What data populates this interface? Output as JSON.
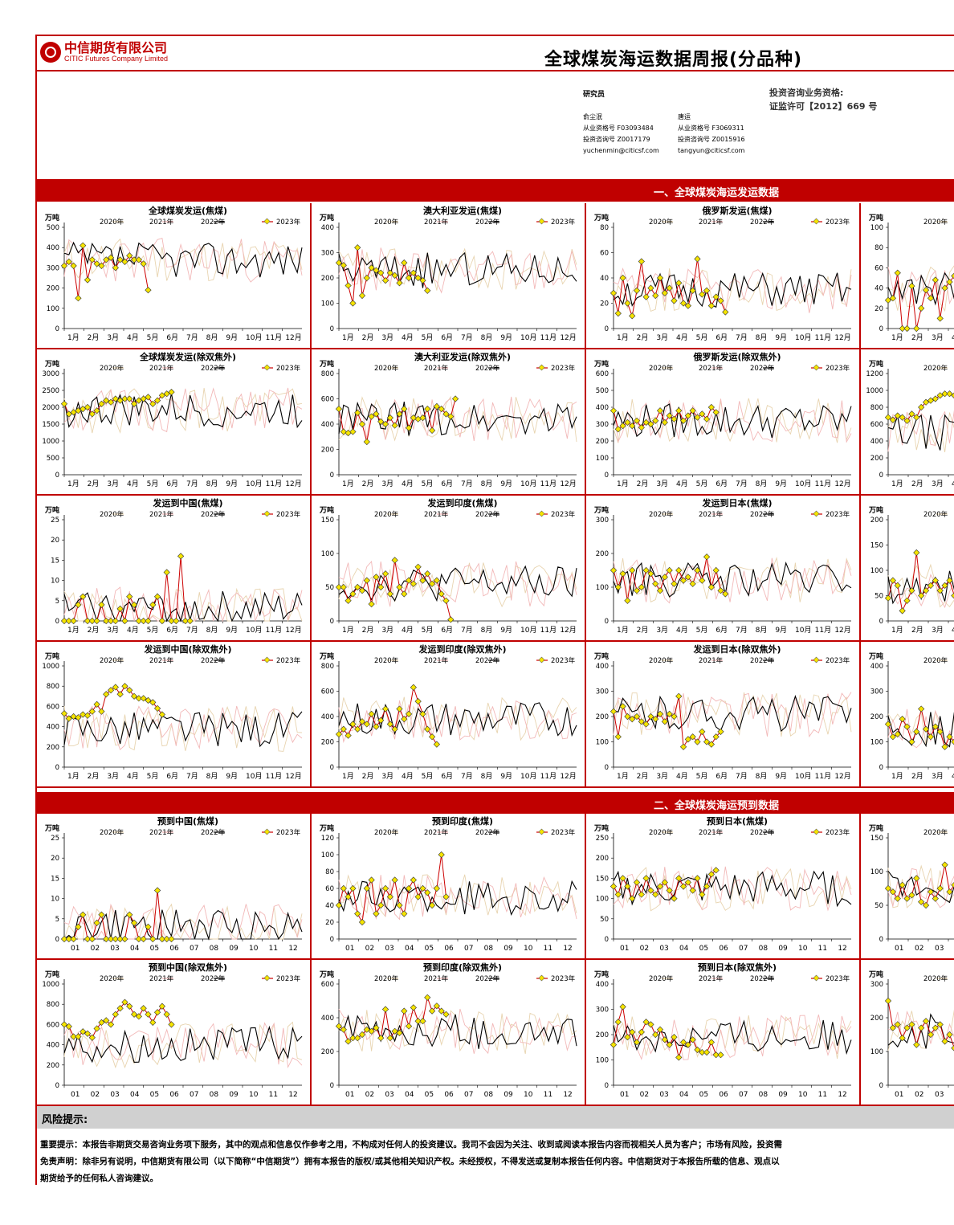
{
  "header": {
    "company_cn": "中信期货有限公司",
    "company_en": "CITIC Futures Company Limited",
    "title": "全球煤炭海运数据周报(分品种)"
  },
  "researchers": {
    "label": "研究员",
    "people": [
      {
        "name": "俞尘泯",
        "qual": "从业资格号 F03093484",
        "consult": "投资咨询号 Z0017179",
        "email": "yuchenmin@citicsf.com"
      },
      {
        "name": "唐运",
        "qual": "从业资格号 F3069311",
        "consult": "投资咨询号 Z0015916",
        "email": "tangyun@citicsf.com"
      }
    ],
    "license_line1": "投资咨询业务资格:",
    "license_line2": "证监许可【2012】669 号"
  },
  "sections": {
    "shipments": "一、全球煤炭海运发运数据",
    "arrivals": "二、全球煤炭海运预到数据"
  },
  "legend": [
    "2020年",
    "2021年",
    "2022年",
    "2023年"
  ],
  "unit": "万吨",
  "colors": {
    "accent": "#c00000",
    "y2020": "#e8d4b0",
    "y2021": "#f2b8b8",
    "y2022": "#000000",
    "y2023_line": "#cc0000",
    "y2023_marker": "#f5e400"
  },
  "month_labels_cn": [
    "1月",
    "2月",
    "3月",
    "4月",
    "5月",
    "6月",
    "7月",
    "8月",
    "9月",
    "10月",
    "11月",
    "12月"
  ],
  "month_labels_num": [
    "01",
    "02",
    "03",
    "04",
    "05",
    "06",
    "07",
    "08",
    "09",
    "10",
    "11",
    "12"
  ],
  "chart_data": [
    {
      "type": "line",
      "title": "全球煤炭发运(焦煤)",
      "ylim": [
        0,
        500
      ],
      "yticks": [
        0,
        100,
        200,
        300,
        400,
        500
      ],
      "axis": "cn",
      "series": [
        {
          "name": "2022年",
          "base": 340
        },
        {
          "name": "2023年",
          "values": [
            310,
            330,
            310,
            150,
            410,
            240,
            340,
            320,
            310,
            340,
            350,
            300,
            340,
            330,
            360,
            340,
            340,
            320,
            190
          ]
        }
      ]
    },
    {
      "type": "line",
      "title": "澳大利亚发运(焦煤)",
      "ylim": [
        0,
        400
      ],
      "yticks": [
        0,
        100,
        200,
        300,
        400
      ],
      "axis": "cn",
      "series": [
        {
          "name": "2022年",
          "base": 230
        },
        {
          "name": "2023年",
          "values": [
            260,
            250,
            170,
            100,
            320,
            130,
            200,
            240,
            230,
            220,
            190,
            220,
            210,
            180,
            260,
            200,
            220,
            200,
            190,
            150
          ]
        }
      ]
    },
    {
      "type": "line",
      "title": "俄罗斯发运(焦煤)",
      "ylim": [
        0,
        80
      ],
      "yticks": [
        0,
        20,
        40,
        60,
        80
      ],
      "axis": "cn",
      "series": [
        {
          "name": "2022年",
          "base": 30
        },
        {
          "name": "2023年",
          "values": [
            28,
            12,
            40,
            20,
            10,
            30,
            53,
            25,
            32,
            26,
            40,
            28,
            32,
            22,
            36,
            20,
            18,
            30,
            55,
            27,
            30,
            18,
            25,
            22,
            13
          ]
        }
      ]
    },
    {
      "type": "line",
      "title": "",
      "ylim": [
        0,
        100
      ],
      "yticks": [
        0,
        20,
        40,
        60,
        80,
        100
      ],
      "axis": "cn",
      "partial": true,
      "series": [
        {
          "name": "2022年",
          "base": 40
        },
        {
          "name": "2023年",
          "values": [
            28,
            30,
            55,
            0,
            0,
            42,
            0,
            20,
            38,
            30,
            48,
            10,
            40,
            46,
            52,
            40
          ]
        }
      ]
    },
    {
      "type": "line",
      "title": "全球煤炭发运(除双焦外)",
      "ylim": [
        0,
        3000
      ],
      "yticks": [
        0,
        500,
        1000,
        1500,
        2000,
        2500,
        3000
      ],
      "axis": "cn",
      "series": [
        {
          "name": "2022年",
          "base": 1900
        },
        {
          "name": "2023年",
          "values": [
            2100,
            1800,
            1850,
            1900,
            1950,
            2000,
            1800,
            1900,
            2100,
            2200,
            2150,
            2250,
            2200,
            2250,
            2250,
            2100,
            2200,
            2250,
            2300,
            2100,
            2200,
            2350,
            2400,
            2450
          ]
        }
      ]
    },
    {
      "type": "line",
      "title": "澳大利亚发运(除双焦外)",
      "ylim": [
        0,
        800
      ],
      "yticks": [
        0,
        200,
        400,
        600,
        800
      ],
      "axis": "cn",
      "series": [
        {
          "name": "2022年",
          "base": 440
        },
        {
          "name": "2023年",
          "values": [
            520,
            340,
            330,
            340,
            490,
            400,
            260,
            460,
            480,
            420,
            400,
            450,
            390,
            480,
            520,
            370,
            450,
            440,
            450,
            520,
            350,
            540,
            520,
            480,
            460,
            600
          ]
        }
      ]
    },
    {
      "type": "line",
      "title": "俄罗斯发运(除双焦外)",
      "ylim": [
        0,
        600
      ],
      "yticks": [
        0,
        100,
        200,
        300,
        400,
        500,
        600
      ],
      "axis": "cn",
      "series": [
        {
          "name": "2022年",
          "base": 320
        },
        {
          "name": "2023年",
          "values": [
            380,
            270,
            290,
            310,
            290,
            320,
            280,
            310,
            300,
            320,
            380,
            310,
            350,
            330,
            380,
            320,
            350,
            380,
            340,
            360,
            330,
            400,
            370
          ]
        }
      ]
    },
    {
      "type": "line",
      "title": "",
      "ylim": [
        0,
        1200
      ],
      "yticks": [
        0,
        200,
        400,
        600,
        800,
        1000,
        1200
      ],
      "axis": "cn",
      "partial": true,
      "series": [
        {
          "name": "2022年",
          "base": 500
        },
        {
          "name": "2023年",
          "values": [
            680,
            650,
            700,
            680,
            640,
            720,
            680,
            800,
            860,
            880,
            900,
            940,
            960,
            960,
            940,
            900
          ]
        }
      ]
    },
    {
      "type": "line",
      "title": "发运到中国(焦煤)",
      "ylim": [
        0,
        25
      ],
      "yticks": [
        0,
        5,
        10,
        15,
        20,
        25
      ],
      "axis": "cn",
      "series": [
        {
          "name": "2022年",
          "base": 3
        },
        {
          "name": "2023年",
          "values": [
            0,
            0,
            0,
            4,
            6,
            0,
            0,
            0,
            4,
            0,
            0,
            0,
            3,
            0,
            6,
            4,
            0,
            0,
            0,
            4,
            6,
            0,
            12,
            0,
            0,
            16,
            0,
            0
          ]
        }
      ]
    },
    {
      "type": "line",
      "title": "发运到印度(焦煤)",
      "ylim": [
        0,
        150
      ],
      "yticks": [
        0,
        50,
        100,
        150
      ],
      "axis": "cn",
      "series": [
        {
          "name": "2022年",
          "base": 55
        },
        {
          "name": "2023年",
          "values": [
            50,
            50,
            30,
            40,
            50,
            45,
            60,
            25,
            65,
            50,
            70,
            40,
            90,
            50,
            40,
            60,
            55,
            80,
            60,
            70,
            55,
            60,
            40,
            30,
            2
          ]
        }
      ]
    },
    {
      "type": "line",
      "title": "发运到日本(焦煤)",
      "ylim": [
        0,
        300
      ],
      "yticks": [
        0,
        100,
        200,
        300
      ],
      "axis": "cn",
      "series": [
        {
          "name": "2022年",
          "base": 120
        },
        {
          "name": "2023年",
          "values": [
            150,
            100,
            140,
            60,
            150,
            90,
            100,
            150,
            140,
            110,
            90,
            130,
            150,
            110,
            150,
            120,
            130,
            110,
            150,
            120,
            190,
            100,
            150,
            90,
            80
          ]
        }
      ]
    },
    {
      "type": "line",
      "title": "",
      "ylim": [
        0,
        200
      ],
      "yticks": [
        0,
        50,
        100,
        150,
        200
      ],
      "axis": "cn",
      "partial": true,
      "series": [
        {
          "name": "2022年",
          "base": 70
        },
        {
          "name": "2023年",
          "values": [
            45,
            80,
            70,
            20,
            40,
            60,
            135,
            50,
            60,
            70,
            80,
            60,
            70,
            80,
            50,
            70
          ]
        }
      ]
    },
    {
      "type": "line",
      "title": "发运到中国(除双焦外)",
      "ylim": [
        0,
        1000
      ],
      "yticks": [
        0,
        200,
        400,
        600,
        800,
        1000
      ],
      "axis": "cn",
      "series": [
        {
          "name": "2022年",
          "base": 380
        },
        {
          "name": "2023年",
          "values": [
            530,
            480,
            500,
            490,
            520,
            510,
            550,
            620,
            550,
            720,
            760,
            790,
            720,
            800,
            760,
            700,
            680,
            680,
            660,
            640,
            580,
            520
          ]
        }
      ]
    },
    {
      "type": "line",
      "title": "发运到印度(除双焦外)",
      "ylim": [
        0,
        800
      ],
      "yticks": [
        0,
        200,
        400,
        600,
        800
      ],
      "axis": "cn",
      "series": [
        {
          "name": "2022年",
          "base": 380
        },
        {
          "name": "2023年",
          "values": [
            260,
            300,
            250,
            340,
            300,
            360,
            340,
            420,
            320,
            370,
            460,
            340,
            300,
            460,
            380,
            420,
            630,
            520,
            420,
            300,
            240,
            180
          ]
        }
      ]
    },
    {
      "type": "line",
      "title": "发运到日本(除双焦外)",
      "ylim": [
        0,
        400
      ],
      "yticks": [
        0,
        100,
        200,
        300,
        400
      ],
      "axis": "cn",
      "series": [
        {
          "name": "2022年",
          "base": 210
        },
        {
          "name": "2023年",
          "values": [
            220,
            120,
            240,
            200,
            190,
            200,
            180,
            170,
            200,
            190,
            210,
            180,
            210,
            200,
            280,
            80,
            110,
            120,
            100,
            140,
            100,
            90,
            120,
            140
          ]
        }
      ]
    },
    {
      "type": "line",
      "title": "",
      "ylim": [
        0,
        400
      ],
      "yticks": [
        0,
        100,
        200,
        300,
        400
      ],
      "axis": "cn",
      "partial": true,
      "series": [
        {
          "name": "2022年",
          "base": 150
        },
        {
          "name": "2023年",
          "values": [
            170,
            120,
            130,
            190,
            160,
            100,
            140,
            230,
            150,
            120,
            160,
            140,
            80,
            120,
            100
          ]
        }
      ]
    },
    {
      "type": "line",
      "title": "预到中国(焦煤)",
      "ylim": [
        0,
        25
      ],
      "yticks": [
        0,
        5,
        10,
        15,
        20,
        25
      ],
      "axis": "num",
      "series": [
        {
          "name": "2022年",
          "base": 3
        },
        {
          "name": "2023年",
          "values": [
            0,
            0,
            0,
            3,
            6,
            0,
            0,
            4,
            6,
            0,
            0,
            0,
            0,
            0,
            6,
            4,
            0,
            0,
            3,
            0,
            12,
            0,
            0,
            0
          ]
        }
      ]
    },
    {
      "type": "line",
      "title": "预到印度(焦煤)",
      "ylim": [
        0,
        120
      ],
      "yticks": [
        0,
        20,
        40,
        60,
        80,
        100,
        120
      ],
      "axis": "num",
      "series": [
        {
          "name": "2022年",
          "base": 50
        },
        {
          "name": "2023年",
          "values": [
            40,
            60,
            50,
            60,
            30,
            20,
            60,
            70,
            30,
            40,
            60,
            50,
            70,
            40,
            30,
            60,
            70,
            50,
            60,
            55,
            40,
            60,
            100,
            50
          ]
        }
      ]
    },
    {
      "type": "line",
      "title": "预到日本(焦煤)",
      "ylim": [
        0,
        250
      ],
      "yticks": [
        0,
        50,
        100,
        150,
        200,
        250
      ],
      "axis": "num",
      "series": [
        {
          "name": "2022年",
          "base": 125
        },
        {
          "name": "2023年",
          "values": [
            130,
            110,
            150,
            130,
            100,
            140,
            110,
            150,
            120,
            110,
            130,
            140,
            120,
            100,
            150,
            130,
            140,
            120,
            150,
            110,
            130,
            160,
            170
          ]
        }
      ]
    },
    {
      "type": "line",
      "title": "",
      "ylim": [
        0,
        150
      ],
      "yticks": [
        0,
        50,
        100,
        150
      ],
      "axis": "num",
      "partial": true,
      "series": [
        {
          "name": "2022年",
          "base": 75
        },
        {
          "name": "2023年",
          "values": [
            75,
            70,
            60,
            80,
            60,
            65,
            90,
            55,
            50,
            70,
            60,
            75,
            110,
            70,
            80,
            60
          ]
        }
      ]
    },
    {
      "type": "line",
      "title": "预到中国(除双焦外)",
      "ylim": [
        0,
        1000
      ],
      "yticks": [
        0,
        200,
        400,
        600,
        800,
        1000
      ],
      "axis": "num",
      "series": [
        {
          "name": "2022年",
          "base": 400
        },
        {
          "name": "2023年",
          "values": [
            600,
            580,
            480,
            480,
            530,
            510,
            470,
            560,
            620,
            640,
            600,
            700,
            760,
            820,
            780,
            700,
            680,
            760,
            700,
            620,
            720,
            780,
            700,
            600
          ]
        }
      ]
    },
    {
      "type": "line",
      "title": "预到印度(除双焦外)",
      "ylim": [
        0,
        600
      ],
      "yticks": [
        0,
        200,
        400,
        600
      ],
      "axis": "num",
      "series": [
        {
          "name": "2022年",
          "base": 320
        },
        {
          "name": "2023年",
          "values": [
            350,
            330,
            260,
            280,
            280,
            300,
            330,
            320,
            340,
            280,
            450,
            280,
            320,
            310,
            440,
            350,
            460,
            380,
            380,
            520,
            440,
            470,
            440,
            420
          ]
        }
      ]
    },
    {
      "type": "line",
      "title": "预到日本(除双焦外)",
      "ylim": [
        0,
        400
      ],
      "yticks": [
        0,
        100,
        200,
        300,
        400
      ],
      "axis": "num",
      "series": [
        {
          "name": "2022年",
          "base": 190
        },
        {
          "name": "2023年",
          "values": [
            160,
            250,
            310,
            190,
            210,
            170,
            210,
            250,
            240,
            200,
            220,
            180,
            160,
            190,
            110,
            170,
            160,
            180,
            140,
            130,
            130,
            170,
            120,
            120
          ]
        }
      ]
    },
    {
      "type": "line",
      "title": "",
      "ylim": [
        0,
        300
      ],
      "yticks": [
        0,
        100,
        200,
        300
      ],
      "axis": "num",
      "partial": true,
      "series": [
        {
          "name": "2022年",
          "base": 160
        },
        {
          "name": "2023年",
          "values": [
            250,
            170,
            180,
            140,
            170,
            180,
            120,
            170,
            190,
            150,
            170,
            180,
            130,
            150,
            110,
            130
          ]
        }
      ]
    }
  ],
  "risk": {
    "title": "风险提示:",
    "lines": [
      "重要提示：本报告非期货交易咨询业务项下服务，其中的观点和信息仅作参考之用，不构成对任何人的投资建议。我司不会因为关注、收到或阅读本报告内容而视相关人员为客户；市场有风险，投资需",
      "免责声明：除非另有说明，中信期货有限公司（以下简称“中信期货”）拥有本报告的版权/或其他相关知识产权。未经授权，不得发送或复制本报告任何内容。中信期货对于本报告所载的信息、观点以",
      "期货给予的任何私人咨询建议。"
    ]
  }
}
